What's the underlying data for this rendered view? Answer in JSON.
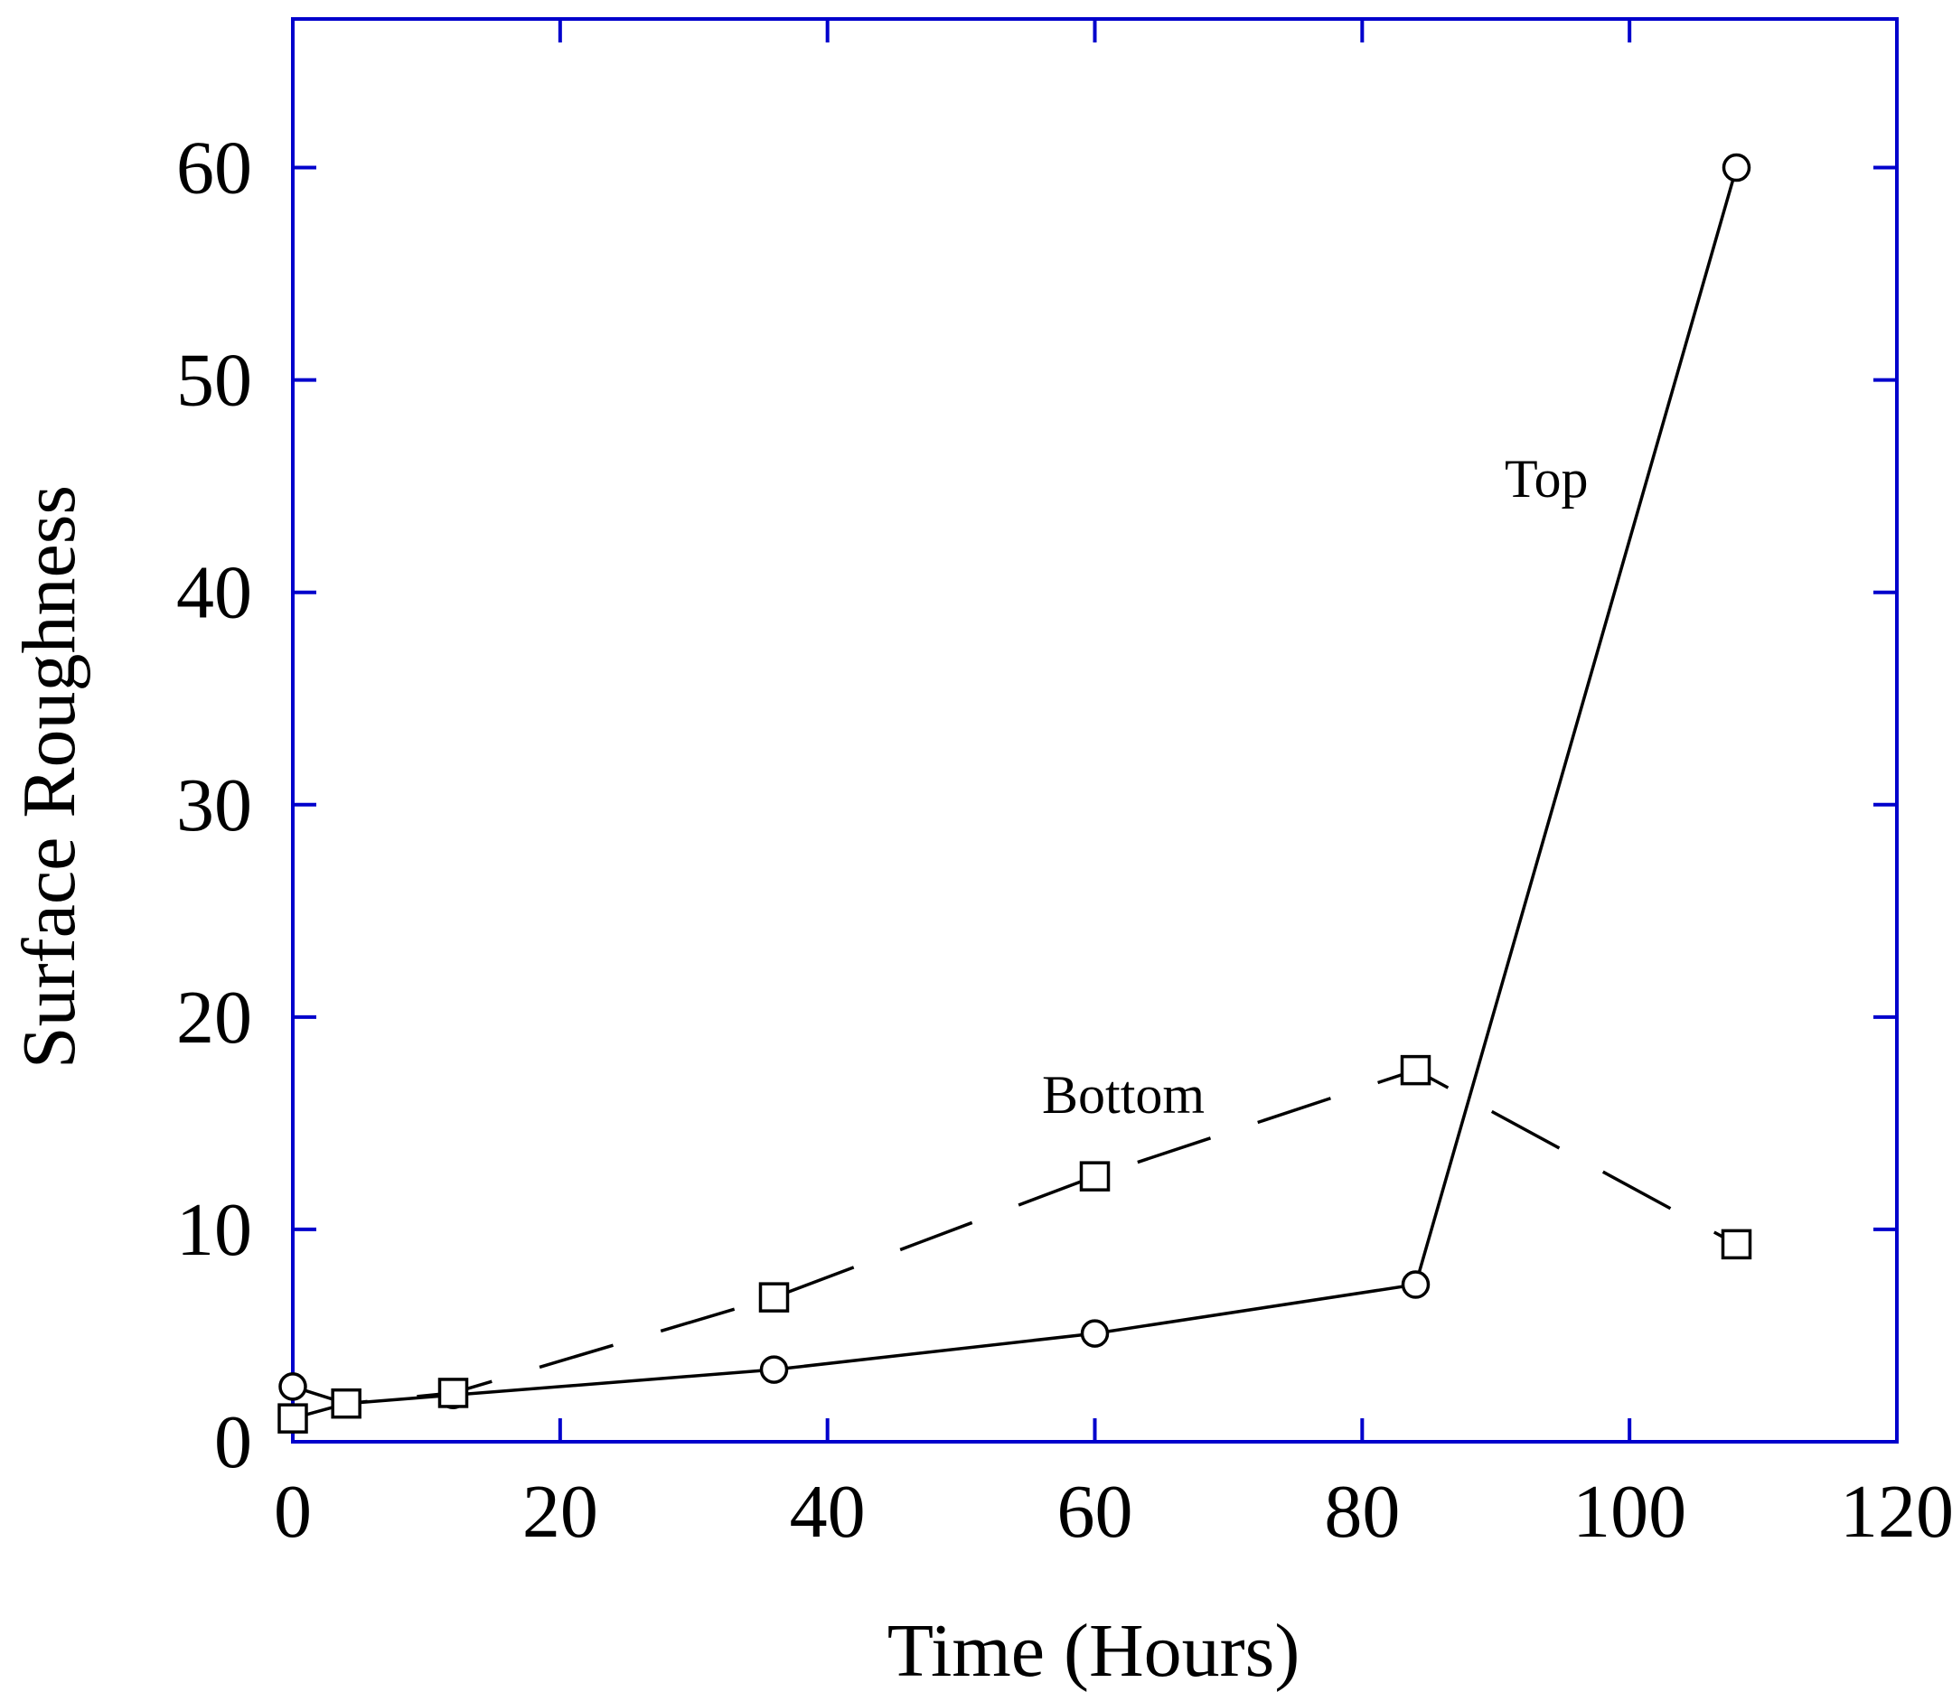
{
  "chart_data": {
    "type": "line",
    "title": "",
    "xlabel": "Time (Hours)",
    "ylabel": "Surface Roughness",
    "xlim": [
      0,
      120
    ],
    "ylim": [
      0,
      67
    ],
    "xticks": [
      0,
      20,
      40,
      60,
      80,
      100,
      120
    ],
    "yticks": [
      0,
      10,
      20,
      30,
      40,
      50,
      60
    ],
    "xtick_labels": [
      "0",
      "20",
      "40",
      "60",
      "80",
      "100",
      "120"
    ],
    "ytick_labels": [
      "0",
      "10",
      "20",
      "30",
      "40",
      "50",
      "60"
    ],
    "grid": false,
    "axis_color": "#0000cc",
    "series": [
      {
        "name": "Top",
        "marker": "circle",
        "line_style": "solid",
        "color": "#000000",
        "x": [
          0,
          4,
          12,
          36,
          60,
          84,
          108
        ],
        "y": [
          2.6,
          1.8,
          2.2,
          3.4,
          5.1,
          7.4,
          60
        ]
      },
      {
        "name": "Bottom",
        "marker": "square",
        "line_style": "dashed",
        "color": "#000000",
        "x": [
          0,
          4,
          12,
          36,
          60,
          84,
          108
        ],
        "y": [
          1.1,
          1.8,
          2.3,
          6.8,
          12.5,
          17.5,
          9.3
        ]
      }
    ],
    "annotations": [
      {
        "text": "Top",
        "series": "Top"
      },
      {
        "text": "Bottom",
        "series": "Bottom"
      }
    ]
  }
}
